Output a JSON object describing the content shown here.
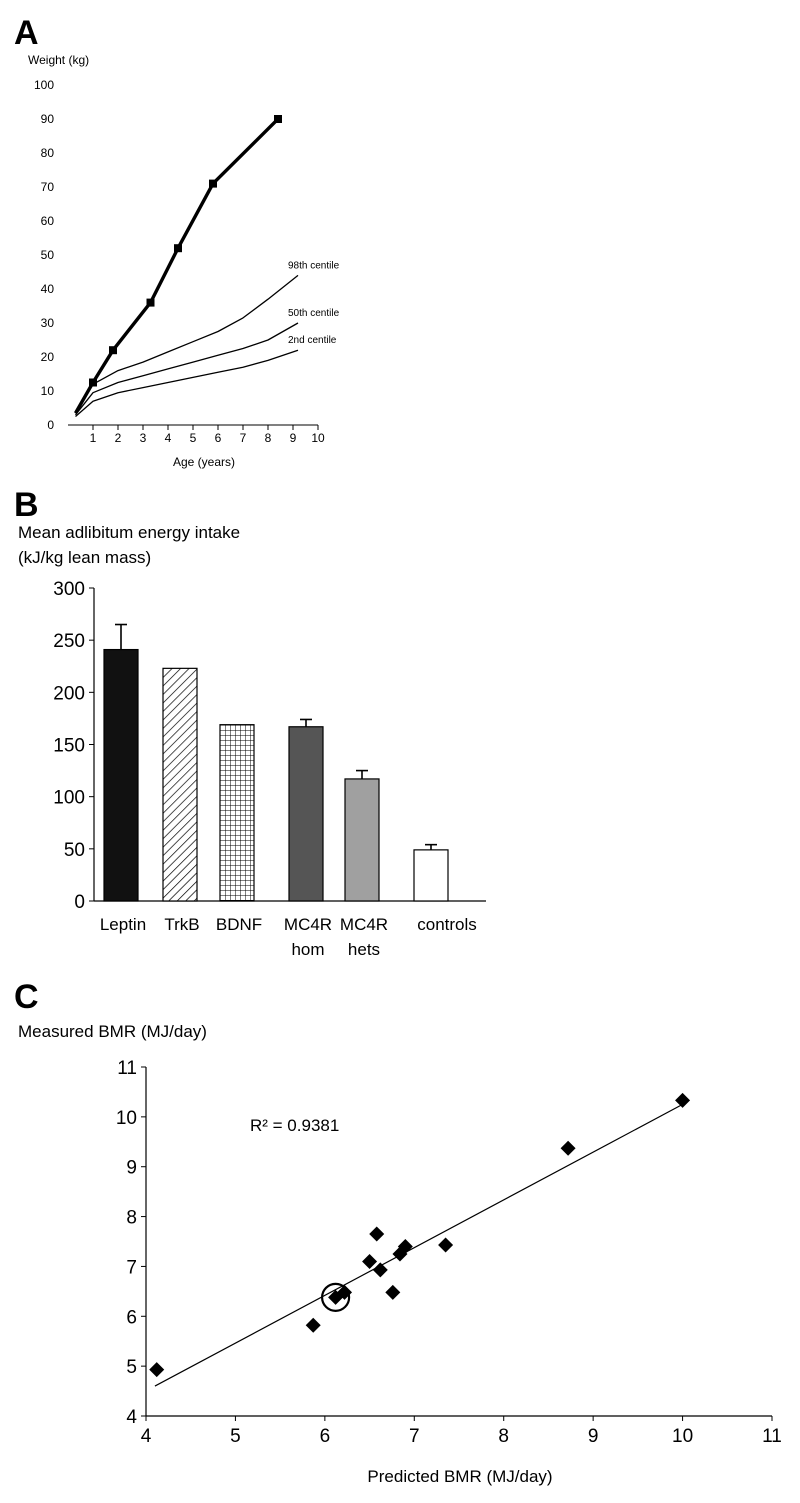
{
  "chart_data": [
    {
      "panel": "A",
      "type": "line",
      "ylabel": "Weight (kg)",
      "xlabel": "Age (years)",
      "xlim": [
        0,
        10
      ],
      "ylim": [
        0,
        100
      ],
      "xticks": [
        1,
        2,
        3,
        4,
        5,
        6,
        7,
        8,
        9,
        10
      ],
      "yticks": [
        0,
        10,
        20,
        30,
        40,
        50,
        60,
        70,
        80,
        90,
        100
      ],
      "series": [
        {
          "x": [
            0.3,
            1.0,
            1.8,
            3.3,
            4.4,
            5.8,
            8.4
          ],
          "y": [
            3.5,
            12.5,
            22,
            36,
            52,
            71,
            90
          ],
          "markers": true,
          "bold": true
        },
        {
          "name": "98th centile",
          "x": [
            0.3,
            1.0,
            2.0,
            3.0,
            4.0,
            5.0,
            6.0,
            7.0,
            8.0,
            9.2
          ],
          "y": [
            3.5,
            12,
            16,
            18.5,
            21.5,
            24.5,
            27.5,
            31.5,
            37,
            44
          ]
        },
        {
          "name": "50th centile",
          "x": [
            0.3,
            1.0,
            2.0,
            3.0,
            4.0,
            5.0,
            6.0,
            7.0,
            8.0,
            9.2
          ],
          "y": [
            3.0,
            9.5,
            12.5,
            14.5,
            16.5,
            18.5,
            20.5,
            22.5,
            25,
            30
          ]
        },
        {
          "name": "2nd centile",
          "x": [
            0.3,
            1.0,
            2.0,
            3.0,
            4.0,
            5.0,
            6.0,
            7.0,
            8.0,
            9.2
          ],
          "y": [
            2.5,
            7,
            9.5,
            11,
            12.5,
            14,
            15.5,
            17,
            19,
            22
          ]
        }
      ]
    },
    {
      "panel": "B",
      "type": "bar",
      "ylabel_line1": "Mean adlibitum energy intake",
      "ylabel_line2": "(kJ/kg lean mass)",
      "ylim": [
        0,
        300
      ],
      "yticks": [
        0,
        50,
        100,
        150,
        200,
        250,
        300
      ],
      "categories": [
        {
          "line1": "Leptin",
          "line2": ""
        },
        {
          "line1": "TrkB",
          "line2": ""
        },
        {
          "line1": "BDNF",
          "line2": ""
        },
        {
          "line1": "MC4R",
          "line2": "hom"
        },
        {
          "line1": "MC4R",
          "line2": "hets"
        },
        {
          "line1": "controls",
          "line2": ""
        }
      ],
      "values": [
        241,
        223,
        169,
        167,
        117,
        49
      ],
      "errors": [
        24,
        null,
        null,
        7,
        8,
        5
      ],
      "colors": [
        "#111111",
        "hatch",
        "grid",
        "#555555",
        "#a0a0a0",
        "#ffffff"
      ]
    },
    {
      "panel": "C",
      "type": "scatter",
      "ylabel": "Measured BMR (MJ/day)",
      "xlabel": "Predicted BMR (MJ/day)",
      "xlim": [
        4,
        11
      ],
      "ylim": [
        4,
        11
      ],
      "xticks": [
        4,
        5,
        6,
        7,
        8,
        9,
        10,
        11
      ],
      "yticks": [
        4,
        5,
        6,
        7,
        8,
        9,
        10,
        11
      ],
      "annotation": "R² = 0.9381",
      "points": [
        [
          4.12,
          4.93
        ],
        [
          5.87,
          5.82
        ],
        [
          6.12,
          6.38
        ],
        [
          6.22,
          6.48
        ],
        [
          6.5,
          7.1
        ],
        [
          6.58,
          7.65
        ],
        [
          6.62,
          6.93
        ],
        [
          6.76,
          6.48
        ],
        [
          6.84,
          7.25
        ],
        [
          6.9,
          7.4
        ],
        [
          7.35,
          7.43
        ],
        [
          8.72,
          9.37
        ],
        [
          10.0,
          10.33
        ]
      ],
      "highlight": [
        6.12,
        6.38
      ],
      "trendline": [
        [
          4.1,
          4.6
        ],
        [
          10.0,
          10.25
        ]
      ]
    }
  ],
  "panel_labels": [
    "A",
    "B",
    "C"
  ]
}
